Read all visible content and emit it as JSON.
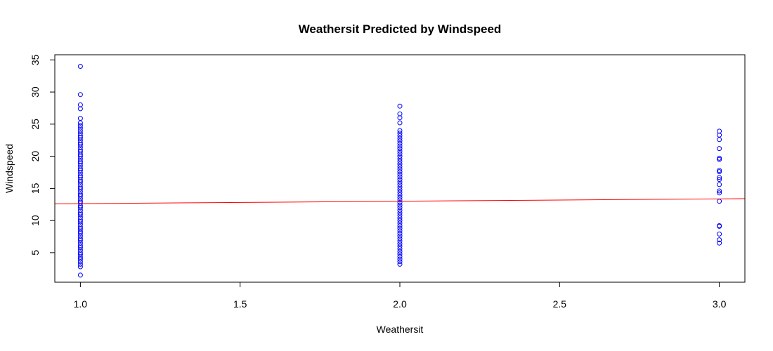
{
  "chart_data": {
    "type": "scatter",
    "title": "Weathersit Predicted by Windspeed",
    "xlabel": "Weathersit",
    "ylabel": "Windspeed",
    "xlim": [
      0.92,
      3.08
    ],
    "ylim": [
      0.4,
      35.8
    ],
    "x_ticks": [
      "1.0",
      "1.5",
      "2.0",
      "2.5",
      "3.0"
    ],
    "y_ticks": [
      "5",
      "10",
      "15",
      "20",
      "25",
      "30",
      "35"
    ],
    "grid": false,
    "point_color": "#0000ff",
    "line_color": "#ff0000",
    "series": [
      {
        "x": 1,
        "values": [
          1.5,
          2.8,
          3.2,
          3.6,
          4.0,
          4.3,
          4.7,
          5.0,
          5.4,
          5.8,
          6.1,
          6.5,
          6.9,
          7.2,
          7.6,
          8.0,
          8.3,
          8.7,
          9.0,
          9.4,
          9.8,
          10.1,
          10.5,
          10.9,
          11.2,
          11.6,
          12.0,
          12.3,
          12.7,
          13.0,
          13.4,
          13.8,
          14.1,
          14.5,
          14.9,
          15.2,
          15.6,
          16.0,
          16.3,
          16.7,
          17.0,
          17.4,
          17.8,
          18.1,
          18.5,
          18.9,
          19.2,
          19.6,
          20.0,
          20.3,
          20.7,
          21.0,
          21.4,
          21.8,
          22.1,
          22.5,
          22.9,
          23.2,
          23.6,
          24.0,
          24.4,
          24.8,
          25.2,
          25.9,
          27.4,
          28.0,
          29.6,
          34.0
        ]
      },
      {
        "x": 2,
        "values": [
          3.2,
          3.6,
          4.0,
          4.4,
          4.8,
          5.2,
          5.6,
          6.0,
          6.4,
          6.8,
          7.2,
          7.6,
          8.0,
          8.4,
          8.8,
          9.2,
          9.6,
          10.0,
          10.4,
          10.8,
          11.2,
          11.6,
          12.0,
          12.4,
          12.8,
          13.2,
          13.6,
          14.0,
          14.4,
          14.8,
          15.2,
          15.6,
          16.0,
          16.4,
          16.8,
          17.2,
          17.6,
          18.0,
          18.4,
          18.8,
          19.2,
          19.6,
          20.0,
          20.4,
          20.8,
          21.2,
          21.6,
          22.0,
          22.4,
          22.8,
          23.2,
          23.6,
          24.0,
          25.2,
          26.0,
          26.6,
          27.8
        ]
      },
      {
        "x": 3,
        "values": [
          6.5,
          7.0,
          7.9,
          9.1,
          9.2,
          13.0,
          14.3,
          14.6,
          15.6,
          16.4,
          16.7,
          17.6,
          17.8,
          19.5,
          19.7,
          21.2,
          22.6,
          23.3,
          23.9
        ]
      }
    ],
    "regression_line": {
      "x": [
        0.92,
        3.08
      ],
      "y": [
        12.6,
        13.4
      ]
    }
  }
}
